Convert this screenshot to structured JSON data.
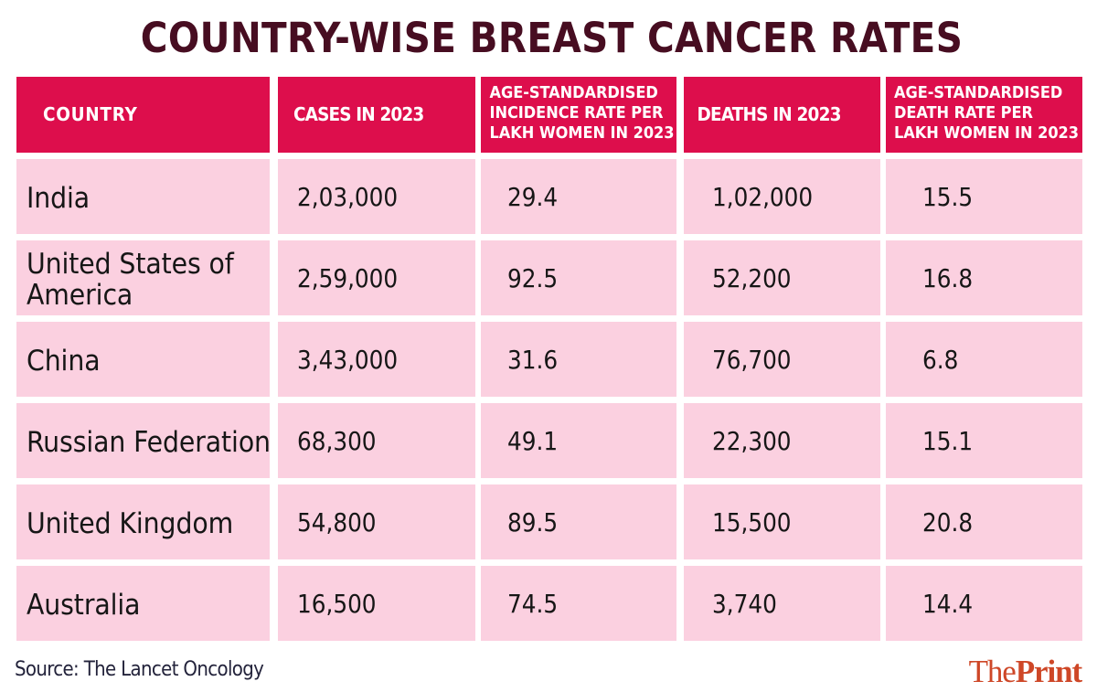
{
  "title": "COUNTRY-WISE BREAST CANCER RATES",
  "colors": {
    "header_bg": "#DD0E4C",
    "row_bg": "#FBD0E0",
    "title_text": "#470D21",
    "body_text": "#161616",
    "source_text": "#23233B",
    "logo_text": "#CE4727"
  },
  "chart_data": {
    "type": "table",
    "title": "COUNTRY-WISE BREAST CANCER RATES",
    "columns": [
      "COUNTRY",
      "CASES IN 2023",
      "AGE-STANDARDISED INCIDENCE RATE PER LAKH WOMEN IN 2023",
      "DEATHS IN 2023",
      "AGE-STANDARDISED DEATH RATE PER LAKH WOMEN IN 2023"
    ],
    "header_lines": [
      [
        "COUNTRY"
      ],
      [
        "CASES IN 2023"
      ],
      [
        "AGE-STANDARDISED",
        "INCIDENCE RATE PER",
        "LAKH WOMEN IN 2023"
      ],
      [
        "DEATHS IN 2023"
      ],
      [
        "AGE-STANDARDISED",
        "DEATH RATE PER",
        "LAKH WOMEN IN 2023"
      ]
    ],
    "rows": [
      [
        "India",
        "2,03,000",
        "29.4",
        "1,02,000",
        "15.5"
      ],
      [
        "United States of America",
        "2,59,000",
        "92.5",
        "52,200",
        "16.8"
      ],
      [
        "China",
        "3,43,000",
        "31.6",
        "76,700",
        "6.8"
      ],
      [
        "Russian Federation",
        "68,300",
        "49.1",
        "22,300",
        "15.1"
      ],
      [
        "United Kingdom",
        "54,800",
        "89.5",
        "15,500",
        "20.8"
      ],
      [
        "Australia",
        "16,500",
        "74.5",
        "3,740",
        "14.4"
      ]
    ],
    "source": "Source: The Lancet Oncology"
  },
  "footer": {
    "source": "Source: The Lancet Oncology",
    "logo_the": "The",
    "logo_print": "Print"
  }
}
